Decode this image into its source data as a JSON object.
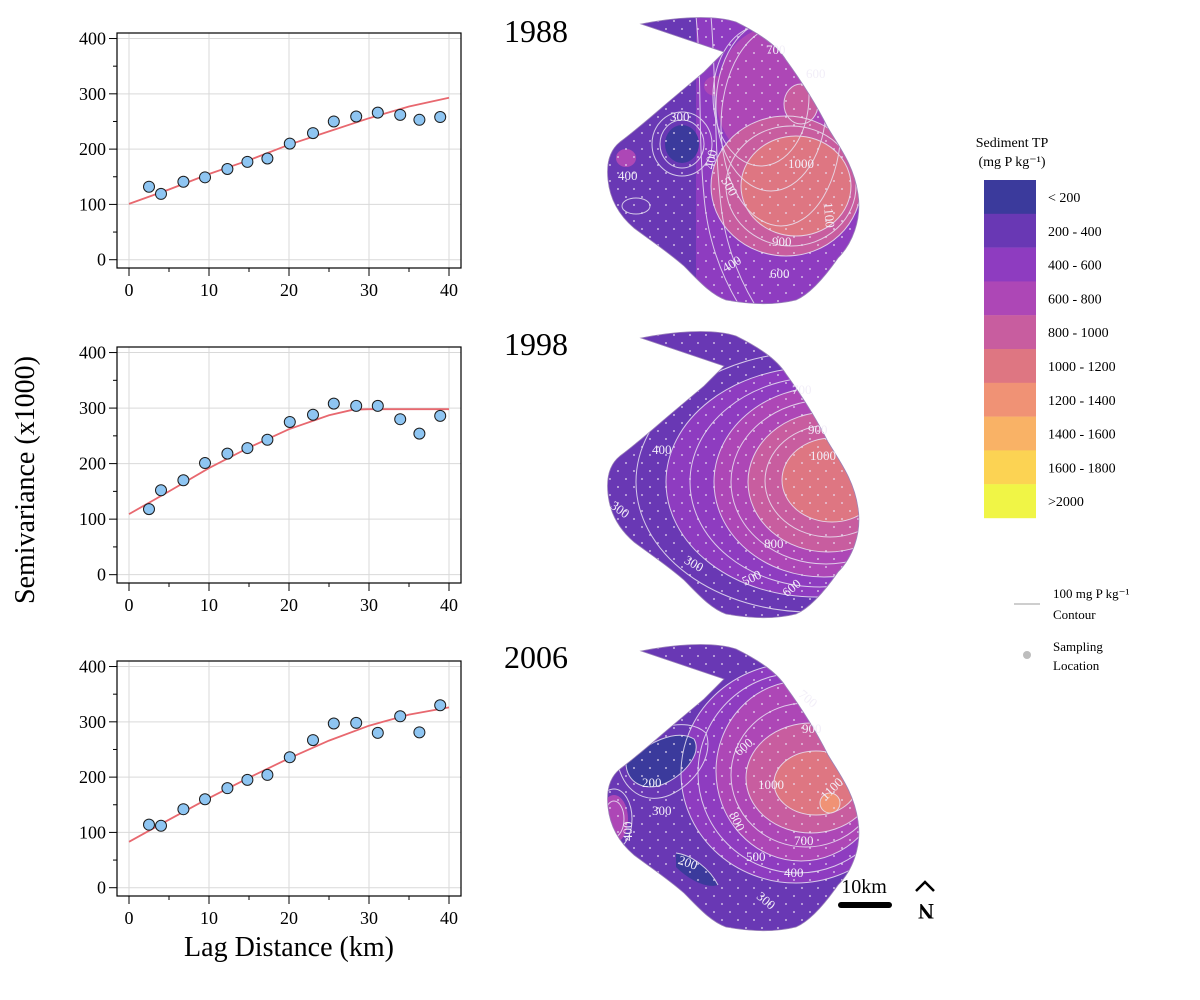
{
  "figure": {
    "ylabel": "Semivariance (x1000)",
    "xlabel": "Lag Distance (km)"
  },
  "chart_data": [
    {
      "type": "scatter",
      "panel_year": "1988",
      "xlim": [
        -1.5,
        41.5
      ],
      "ylim": [
        -15,
        410
      ],
      "xticks": [
        0,
        10,
        20,
        30,
        40
      ],
      "yticks": [
        0,
        100,
        200,
        300,
        400
      ],
      "grid": true,
      "points": {
        "x": [
          2.5,
          4,
          6.8,
          9.5,
          12.3,
          14.8,
          17.3,
          20.1,
          23,
          25.6,
          28.4,
          31.1,
          33.9,
          36.3,
          38.9
        ],
        "y": [
          132,
          119,
          141,
          149,
          164,
          177,
          183,
          210,
          229,
          250,
          259,
          266,
          262,
          253,
          258
        ]
      },
      "fit": {
        "x": [
          0,
          5,
          10,
          15,
          20,
          25,
          30,
          35,
          40
        ],
        "y": [
          101,
          127,
          155,
          180,
          208,
          232,
          256,
          277,
          293
        ]
      }
    },
    {
      "type": "scatter",
      "panel_year": "1998",
      "xlim": [
        -1.5,
        41.5
      ],
      "ylim": [
        -15,
        410
      ],
      "xticks": [
        0,
        10,
        20,
        30,
        40
      ],
      "yticks": [
        0,
        100,
        200,
        300,
        400
      ],
      "grid": true,
      "points": {
        "x": [
          2.5,
          4,
          6.8,
          9.5,
          12.3,
          14.8,
          17.3,
          20.1,
          23,
          25.6,
          28.4,
          31.1,
          33.9,
          36.3,
          38.9
        ],
        "y": [
          118,
          152,
          170,
          201,
          218,
          228,
          243,
          275,
          288,
          308,
          304,
          304,
          280,
          254,
          286
        ]
      },
      "fit": {
        "x": [
          0,
          5,
          10,
          15,
          20,
          25,
          28,
          30,
          35,
          40
        ],
        "y": [
          109,
          150,
          192,
          229,
          262,
          287,
          297,
          298,
          298,
          298
        ]
      }
    },
    {
      "type": "scatter",
      "panel_year": "2006",
      "xlim": [
        -1.5,
        41.5
      ],
      "ylim": [
        -15,
        410
      ],
      "xticks": [
        0,
        10,
        20,
        30,
        40
      ],
      "yticks": [
        0,
        100,
        200,
        300,
        400
      ],
      "grid": true,
      "points": {
        "x": [
          2.5,
          4,
          6.8,
          9.5,
          12.3,
          14.8,
          17.3,
          20.1,
          23,
          25.6,
          28.4,
          31.1,
          33.9,
          36.3,
          38.9
        ],
        "y": [
          114,
          112,
          142,
          160,
          180,
          195,
          204,
          236,
          267,
          297,
          298,
          280,
          310,
          281,
          330
        ]
      },
      "fit": {
        "x": [
          0,
          5,
          10,
          15,
          20,
          25,
          30,
          35,
          40
        ],
        "y": [
          83,
          123,
          162,
          199,
          234,
          266,
          293,
          313,
          326
        ]
      }
    }
  ],
  "maps": [
    {
      "year": "1988",
      "labels": [
        "700",
        "600",
        "300",
        "400",
        "400",
        "500",
        "1000",
        "1100",
        "900",
        "400",
        "600"
      ]
    },
    {
      "year": "1998",
      "labels": [
        "700",
        "900",
        "1000",
        "400",
        "300",
        "800",
        "300",
        "500",
        "600"
      ]
    },
    {
      "year": "2006",
      "labels": [
        "700",
        "900",
        "600",
        "200",
        "1000",
        "1100",
        "300",
        "400",
        "800",
        "700",
        "500",
        "200",
        "400",
        "300"
      ]
    }
  ],
  "legend": {
    "title_line1": "Sediment TP",
    "title_line2": "(mg P kg⁻¹)",
    "classes": [
      {
        "label": "< 200",
        "color": "#3b3a9c"
      },
      {
        "label": "200 - 400",
        "color": "#6938b4"
      },
      {
        "label": "400 - 600",
        "color": "#8e3cc0"
      },
      {
        "label": "600 - 800",
        "color": "#ad47b6"
      },
      {
        "label": "800 - 1000",
        "color": "#c85d9f"
      },
      {
        "label": "1000 - 1200",
        "color": "#de7682"
      },
      {
        "label": "1200 - 1400",
        "color": "#f09275"
      },
      {
        "label": "1400 - 1600",
        "color": "#f9b266"
      },
      {
        "label": "1600 - 1800",
        "color": "#fcd353"
      },
      {
        "label": ">2000",
        "color": "#f0f546"
      }
    ],
    "contour_line1": "100 mg P kg⁻¹",
    "contour_line2": "Contour",
    "sampling_line1": "Sampling",
    "sampling_line2": "Location"
  },
  "scale": {
    "label": "10km"
  },
  "north": {
    "label": "N"
  }
}
